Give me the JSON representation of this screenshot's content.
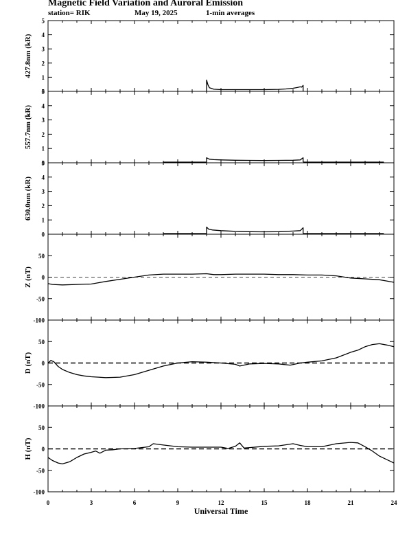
{
  "header": {
    "title": "Magnetic Field Variation and Auroral Emission",
    "station": "station= RIK",
    "date": "May 19, 2025",
    "averaging": "1-min averages"
  },
  "chart_data": {
    "type": "line",
    "x_axis": {
      "label": "Universal Time",
      "range": [
        0,
        24
      ],
      "ticks": [
        0,
        3,
        6,
        9,
        12,
        15,
        18,
        21,
        24
      ]
    },
    "panels": [
      {
        "id": "p4278",
        "ylabel": "427.8nm (kR)",
        "ylim": [
          0,
          5
        ],
        "yticks": [
          0,
          1,
          2,
          3,
          4,
          5
        ],
        "zero_line": "none",
        "series": [
          {
            "x": [
              11.0,
              11.0,
              11.1,
              11.2,
              11.5,
              12,
              13,
              14,
              15,
              16,
              16.5,
              17,
              17.3,
              17.5,
              17.6,
              17.7,
              17.7
            ],
            "y": [
              0.0,
              0.8,
              0.45,
              0.25,
              0.15,
              0.12,
              0.12,
              0.12,
              0.12,
              0.14,
              0.17,
              0.22,
              0.27,
              0.32,
              0.3,
              0.42,
              0.0
            ]
          }
        ]
      },
      {
        "id": "p5577",
        "ylabel": "557.7nm (kR)",
        "ylim": [
          0,
          5
        ],
        "yticks": [
          0,
          1,
          2,
          3,
          4,
          5
        ],
        "zero_line": "none",
        "series": [
          {
            "x": [
              8.0,
              11.0
            ],
            "y": [
              0.05,
              0.05
            ]
          },
          {
            "x": [
              11.0,
              11.0,
              11.2,
              11.5,
              12,
              13,
              14,
              15,
              16,
              17,
              17.5,
              17.7,
              17.7
            ],
            "y": [
              0.05,
              0.35,
              0.25,
              0.22,
              0.2,
              0.18,
              0.17,
              0.16,
              0.17,
              0.18,
              0.2,
              0.35,
              0.05
            ]
          },
          {
            "x": [
              17.7,
              23.3
            ],
            "y": [
              0.05,
              0.05
            ]
          }
        ]
      },
      {
        "id": "p6300",
        "ylabel": "630.0nm (kR)",
        "ylim": [
          0,
          5
        ],
        "yticks": [
          0,
          1,
          2,
          3,
          4,
          5
        ],
        "zero_line": "none",
        "series": [
          {
            "x": [
              8.0,
              11.0
            ],
            "y": [
              0.05,
              0.05
            ]
          },
          {
            "x": [
              11.0,
              11.0,
              11.15,
              11.4,
              12,
              13,
              14,
              15,
              16,
              17,
              17.5,
              17.7,
              17.7
            ],
            "y": [
              0.05,
              0.5,
              0.35,
              0.3,
              0.25,
              0.2,
              0.18,
              0.17,
              0.18,
              0.22,
              0.25,
              0.45,
              0.05
            ]
          },
          {
            "x": [
              17.7,
              23.3
            ],
            "y": [
              0.05,
              0.05
            ]
          }
        ]
      },
      {
        "id": "pZ",
        "ylabel": "Z (nT)",
        "ylim": [
          -100,
          100
        ],
        "yticks": [
          -100,
          -50,
          0,
          50
        ],
        "zero_line": "thin-dashed",
        "series": [
          {
            "x": [
              0,
              0.3,
              1,
              2,
              3,
              3.5,
              4,
              5,
              6,
              7,
              8,
              9,
              10,
              11,
              11.5,
              12,
              13,
              14,
              15,
              16,
              17,
              18,
              19,
              20,
              21,
              22,
              23,
              23.5,
              24
            ],
            "y": [
              -15,
              -17,
              -18,
              -17,
              -16,
              -13,
              -10,
              -5,
              0,
              5,
              7,
              7,
              7,
              8,
              6,
              6,
              7,
              7,
              7,
              6,
              6,
              5,
              5,
              3,
              -2,
              -4,
              -6,
              -9,
              -12
            ]
          }
        ]
      },
      {
        "id": "pD",
        "ylabel": "D (nT)",
        "ylim": [
          -100,
          100
        ],
        "yticks": [
          -100,
          -50,
          0,
          50
        ],
        "zero_line": "thick-dashed",
        "series": [
          {
            "x": [
              0,
              0.2,
              0.4,
              0.7,
              1,
              1.5,
              2,
              2.5,
              3,
              3.5,
              4,
              5,
              6,
              7,
              8,
              9,
              10,
              11,
              12,
              13,
              13.3,
              14,
              15,
              16,
              16.8,
              17.5,
              18,
              19,
              20,
              21,
              21.5,
              22,
              22.5,
              23,
              23.5,
              24
            ],
            "y": [
              0,
              6,
              3,
              -8,
              -15,
              -22,
              -27,
              -30,
              -32,
              -33,
              -34,
              -33,
              -27,
              -17,
              -7,
              0,
              3,
              2,
              0,
              -3,
              -7,
              -2,
              -1,
              -2,
              -5,
              0,
              2,
              5,
              12,
              25,
              30,
              38,
              43,
              45,
              42,
              38
            ]
          }
        ]
      },
      {
        "id": "pH",
        "ylabel": "H (nT)",
        "ylim": [
          -100,
          100
        ],
        "yticks": [
          -100,
          -50,
          0,
          50
        ],
        "zero_line": "thick-dashed",
        "series": [
          {
            "x": [
              0,
              0.3,
              0.7,
              1,
              1.5,
              2,
              2.5,
              3,
              3.3,
              3.6,
              4,
              4.5,
              5,
              6,
              7,
              7.3,
              8,
              8.5,
              9,
              10,
              11,
              12,
              12.5,
              13,
              13.3,
              13.6,
              14,
              15,
              16,
              17,
              17.5,
              18,
              19,
              20,
              21,
              21.5,
              22,
              22.5,
              23,
              23.5,
              24
            ],
            "y": [
              -20,
              -27,
              -33,
              -35,
              -30,
              -20,
              -12,
              -8,
              -5,
              -10,
              -3,
              -2,
              0,
              1,
              5,
              12,
              9,
              7,
              5,
              4,
              4,
              4,
              1,
              6,
              14,
              2,
              3,
              6,
              7,
              12,
              8,
              5,
              5,
              12,
              15,
              14,
              5,
              -5,
              -17,
              -25,
              -33
            ]
          }
        ]
      }
    ]
  }
}
